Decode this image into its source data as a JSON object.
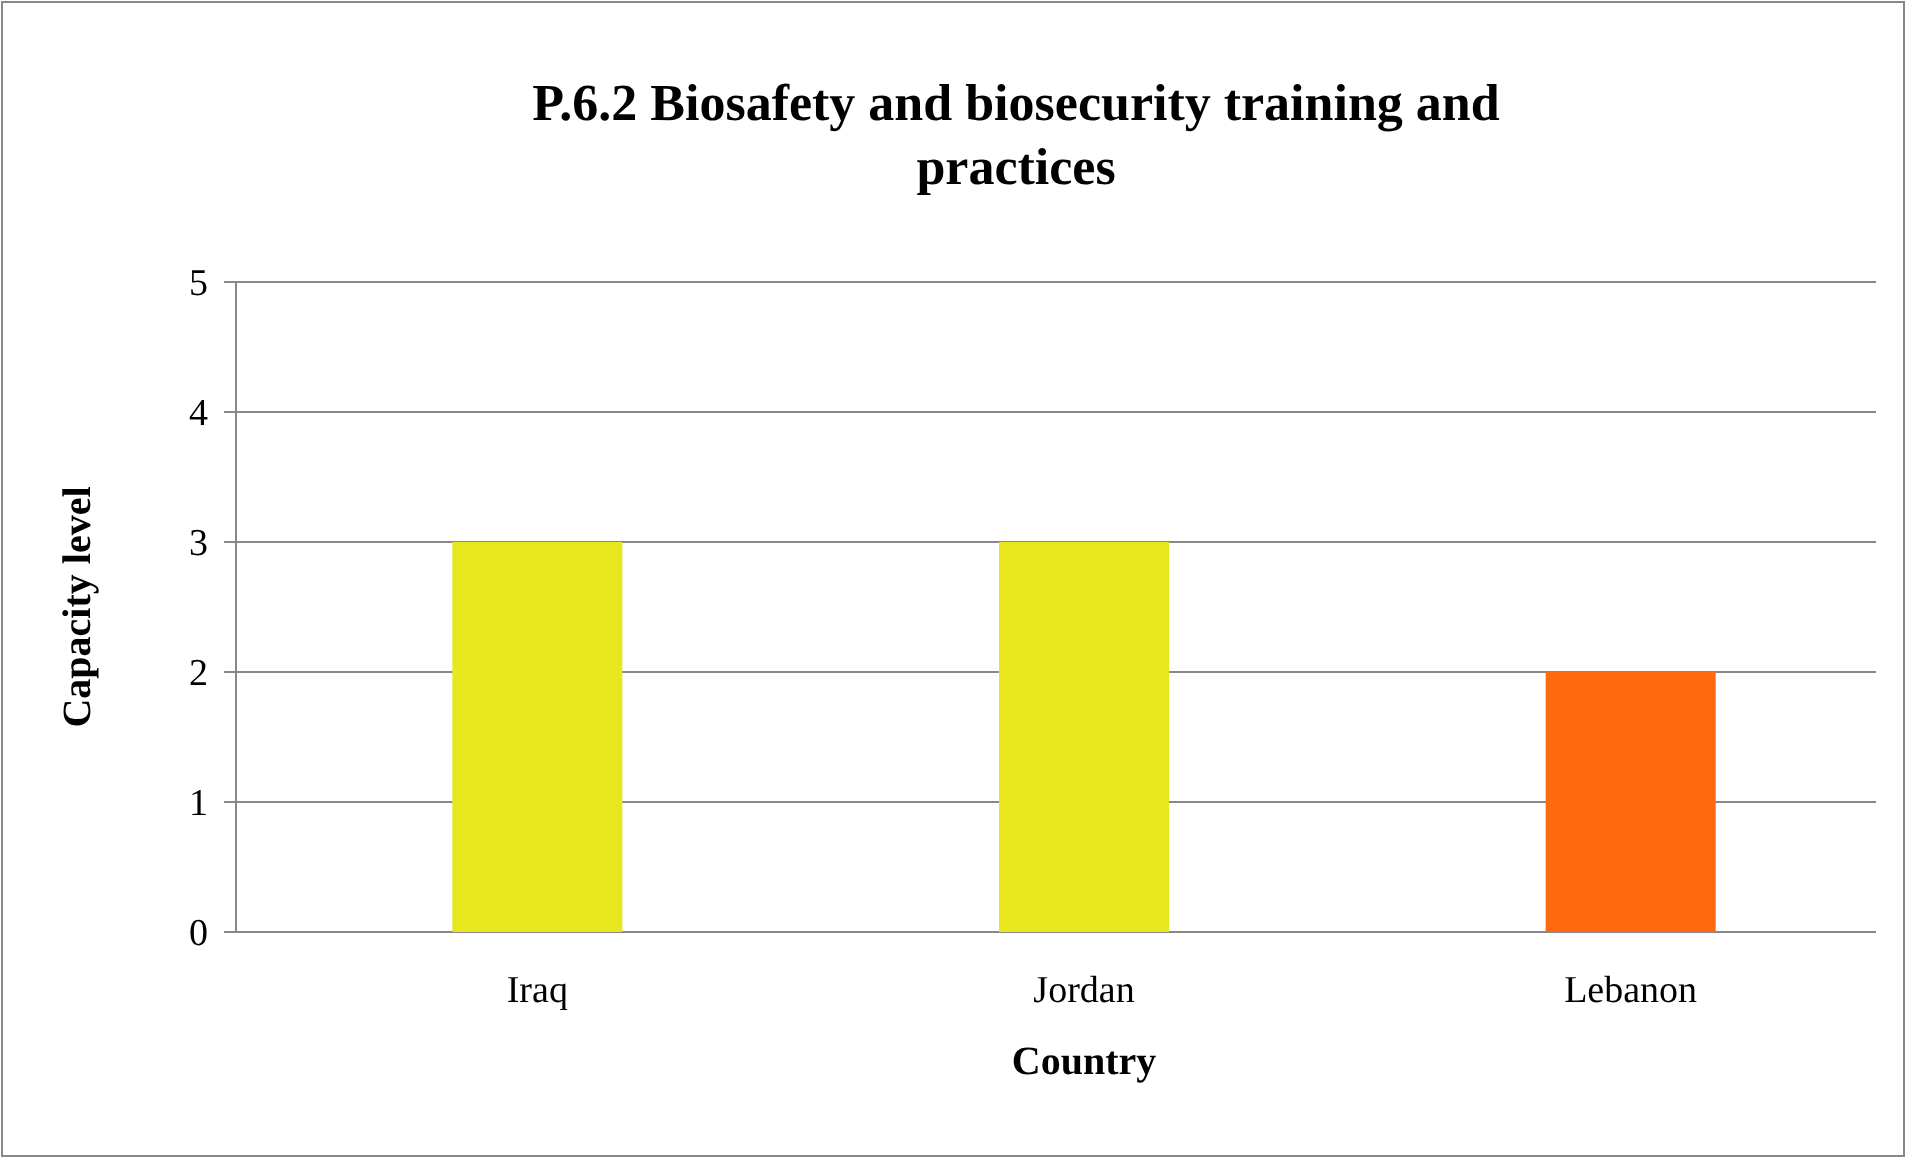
{
  "chart_data": {
    "type": "bar",
    "title": "P.6.2 Biosafety and biosecurity training and practices",
    "xlabel": "Country",
    "ylabel": "Capacity level",
    "categories": [
      "Iraq",
      "Jordan",
      "Lebanon"
    ],
    "values": [
      3,
      3,
      2
    ],
    "colors": [
      "#e8e61c",
      "#e8e61c",
      "#ff6a0e"
    ],
    "ylim": [
      0,
      5
    ],
    "yticks": [
      0,
      1,
      2,
      3,
      4,
      5
    ],
    "grid": "y"
  }
}
